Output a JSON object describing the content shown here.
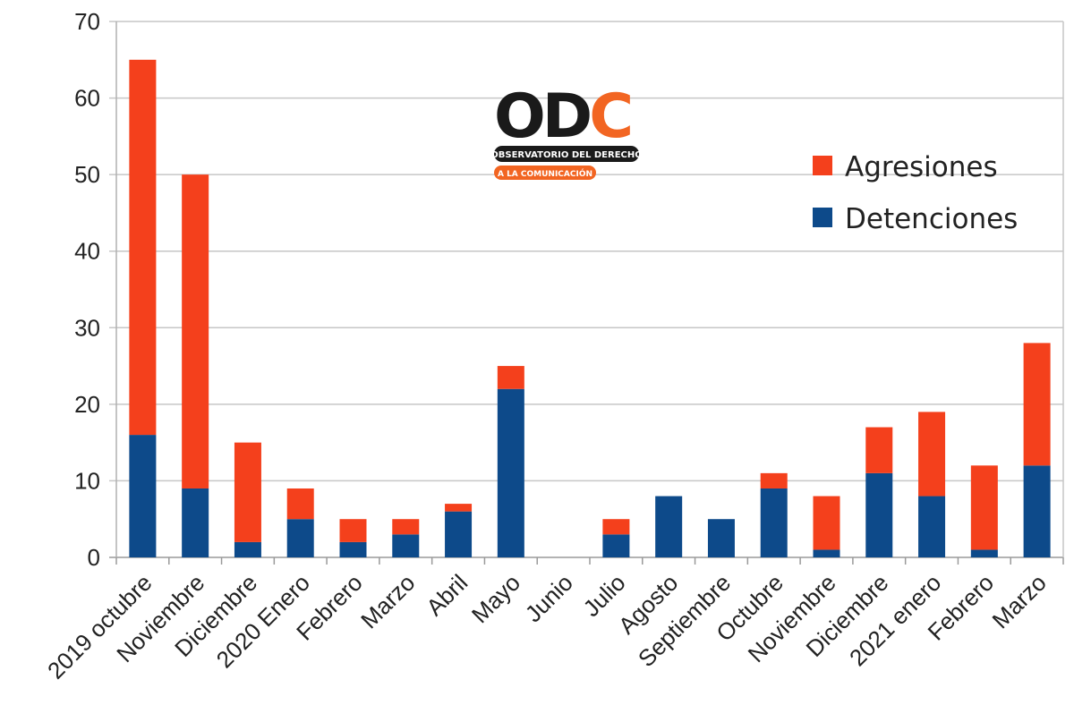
{
  "chart_data": {
    "type": "bar",
    "stacked": true,
    "categories": [
      "2019 octubre",
      "Noviembre",
      "Diciembre",
      "2020 Enero",
      "Febrero",
      "Marzo",
      "Abril",
      "Mayo",
      "Junio",
      "Julio",
      "Agosto",
      "Septiembre",
      "Octubre",
      "Noviembre",
      "Diciembre",
      "2021 enero",
      "Febrero",
      "Marzo"
    ],
    "series": [
      {
        "name": "Detenciones",
        "color": "#0d4a8a",
        "values": [
          16,
          9,
          2,
          5,
          2,
          3,
          6,
          22,
          0,
          3,
          8,
          5,
          9,
          1,
          11,
          8,
          1,
          12
        ]
      },
      {
        "name": "Agresiones",
        "color": "#f4401c",
        "values": [
          49,
          41,
          13,
          4,
          3,
          2,
          1,
          3,
          0,
          2,
          0,
          0,
          2,
          7,
          6,
          11,
          11,
          16
        ]
      }
    ],
    "ylim": [
      0,
      70
    ],
    "yticks": [
      0,
      10,
      20,
      30,
      40,
      50,
      60,
      70
    ],
    "grid": true,
    "legend": {
      "placement": "top-right",
      "entries": [
        "Agresiones",
        "Detenciones"
      ]
    }
  },
  "logo": {
    "name": "ODC",
    "letters": "ODC",
    "line1": "OBSERVATORIO DEL DERECHO",
    "line2": "A LA COMUNICACIÓN",
    "dark_color": "#1a1a1a",
    "accent_color": "#f26522"
  }
}
